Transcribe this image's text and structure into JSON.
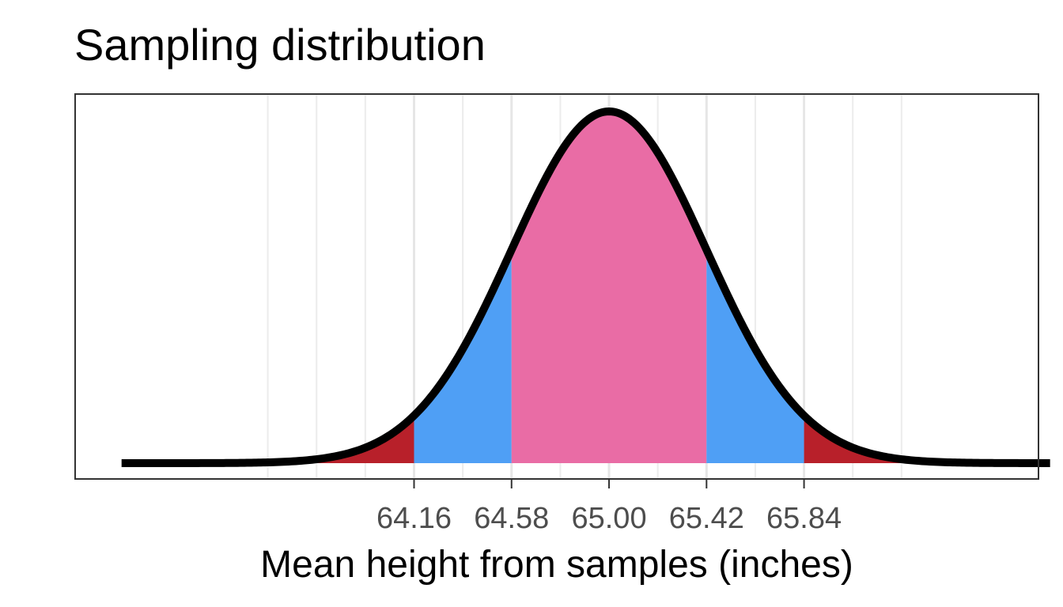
{
  "chart_data": {
    "type": "area",
    "title": "Sampling distribution",
    "xlabel": "Mean height from samples (inches)",
    "ylabel": "",
    "distribution": "normal",
    "mean": 65.0,
    "sd": 0.42,
    "xlim": [
      62.7,
      66.85
    ],
    "curve_range": [
      62.9,
      66.9
    ],
    "x_ticks": [
      64.16,
      64.58,
      65.0,
      65.42,
      65.84
    ],
    "x_tick_labels": [
      "64.16",
      "64.58",
      "65.00",
      "65.42",
      "65.84"
    ],
    "minor_gridlines": [
      63.53,
      63.74,
      63.95,
      64.37,
      64.79,
      65.21,
      65.63,
      66.05,
      66.26
    ],
    "grid": true,
    "y_axis_visible": false,
    "regions": [
      {
        "from": 63.53,
        "to": 64.16,
        "color": "#b8202a"
      },
      {
        "from": 64.16,
        "to": 64.58,
        "color": "#4f9ff5"
      },
      {
        "from": 64.58,
        "to": 65.42,
        "color": "#e96ca5"
      },
      {
        "from": 65.42,
        "to": 65.84,
        "color": "#4f9ff5"
      },
      {
        "from": 65.84,
        "to": 66.47,
        "color": "#b8202a"
      }
    ],
    "curve_color": "#000000"
  }
}
